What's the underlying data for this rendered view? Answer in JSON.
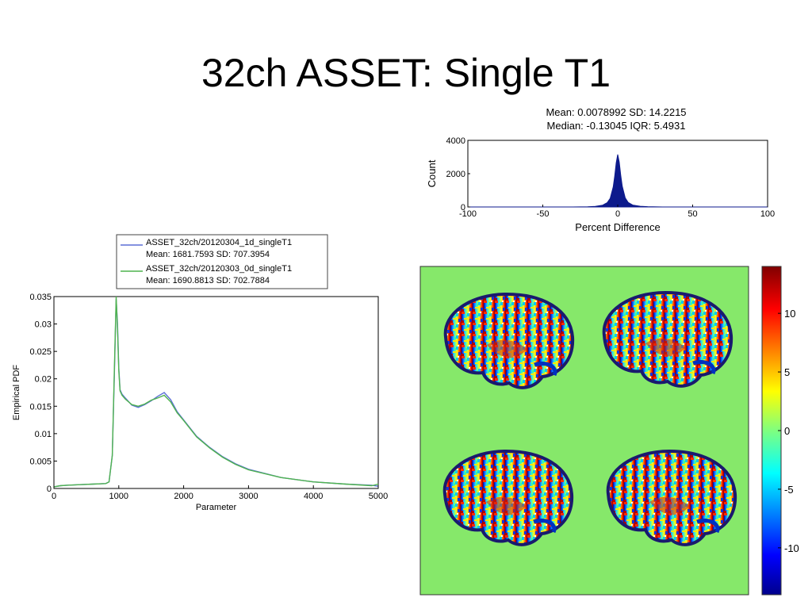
{
  "slide": {
    "title": "32ch ASSET: Single T1"
  },
  "histogram": {
    "stats_line1": "Mean: 0.0078992 SD: 14.2215",
    "stats_line2": "Median: -0.13045 IQR: 5.4931"
  },
  "pdf_legend": {
    "series1_label": "ASSET_32ch/20120304_1d_singleT1",
    "series1_stats": "Mean: 1681.7593 SD: 707.3954",
    "series2_label": "ASSET_32ch/20120303_0d_singleT1",
    "series2_stats": "Mean: 1690.8813 SD: 702.7884"
  },
  "colors": {
    "series1": "#5b6fd6",
    "series2": "#4fb34f",
    "histogram_fill": "#0d1a8c",
    "map_background": "#86e86a"
  },
  "icons": {
    "brain_slices": [
      "brain-slice-top-left",
      "brain-slice-top-right",
      "brain-slice-bottom-left",
      "brain-slice-bottom-right"
    ]
  },
  "chart_data": [
    {
      "type": "area",
      "title": "",
      "xlabel": "Percent Difference",
      "ylabel": "Count",
      "xlim": [
        -100,
        100
      ],
      "ylim": [
        0,
        4000
      ],
      "xticks": [
        -100,
        -50,
        0,
        50,
        100
      ],
      "yticks": [
        0,
        2000,
        4000
      ],
      "x": [
        -100,
        -30,
        -20,
        -15,
        -10,
        -7,
        -5,
        -3,
        -2,
        -1,
        0,
        1,
        2,
        3,
        5,
        7,
        10,
        15,
        20,
        30,
        100
      ],
      "values": [
        0,
        0,
        15,
        40,
        110,
        260,
        520,
        1200,
        1850,
        2650,
        3150,
        2700,
        1900,
        1250,
        540,
        270,
        115,
        45,
        18,
        0,
        0
      ],
      "grid": false
    },
    {
      "type": "line",
      "title": "",
      "xlabel": "Parameter",
      "ylabel": "Empirical PDF",
      "xlim": [
        0,
        5000
      ],
      "ylim": [
        0,
        0.035
      ],
      "xticks": [
        0,
        1000,
        2000,
        3000,
        4000,
        5000
      ],
      "yticks": [
        0,
        0.005,
        0.01,
        0.015,
        0.02,
        0.025,
        0.03,
        0.035
      ],
      "legend_position": "top-outside",
      "x": [
        0,
        100,
        200,
        400,
        600,
        800,
        850,
        900,
        930,
        960,
        980,
        1000,
        1020,
        1050,
        1100,
        1200,
        1300,
        1400,
        1500,
        1600,
        1700,
        1800,
        1900,
        2000,
        2200,
        2400,
        2600,
        2800,
        3000,
        3500,
        4000,
        4500,
        4900,
        5000
      ],
      "series": [
        {
          "name": "ASSET_32ch/20120304_1d_singleT1",
          "values": [
            0.0003,
            0.0005,
            0.0006,
            0.0007,
            0.0008,
            0.0009,
            0.0012,
            0.006,
            0.02,
            0.0345,
            0.03,
            0.022,
            0.018,
            0.0172,
            0.0165,
            0.0152,
            0.0148,
            0.0153,
            0.016,
            0.0168,
            0.0175,
            0.0162,
            0.014,
            0.0125,
            0.0095,
            0.0075,
            0.0058,
            0.0045,
            0.0035,
            0.002,
            0.0012,
            0.0008,
            0.0006,
            0.0004
          ]
        },
        {
          "name": "ASSET_32ch/20120303_0d_singleT1",
          "values": [
            0.0003,
            0.0005,
            0.0006,
            0.0007,
            0.0008,
            0.0009,
            0.0012,
            0.006,
            0.021,
            0.035,
            0.029,
            0.0215,
            0.0178,
            0.017,
            0.0163,
            0.0153,
            0.015,
            0.0154,
            0.0161,
            0.0165,
            0.017,
            0.0158,
            0.0138,
            0.0124,
            0.0094,
            0.0074,
            0.0057,
            0.0044,
            0.0034,
            0.002,
            0.0012,
            0.0008,
            0.0005,
            0.0008
          ]
        }
      ]
    },
    {
      "type": "heatmap",
      "title": "",
      "colorbar_range": [
        -14,
        14
      ],
      "colorbar_ticks": [
        -10,
        -5,
        0,
        5,
        10
      ],
      "colorbar_tick_labels": [
        "-10",
        "-5",
        "0",
        "5",
        "10"
      ],
      "colormap": "jet"
    }
  ]
}
